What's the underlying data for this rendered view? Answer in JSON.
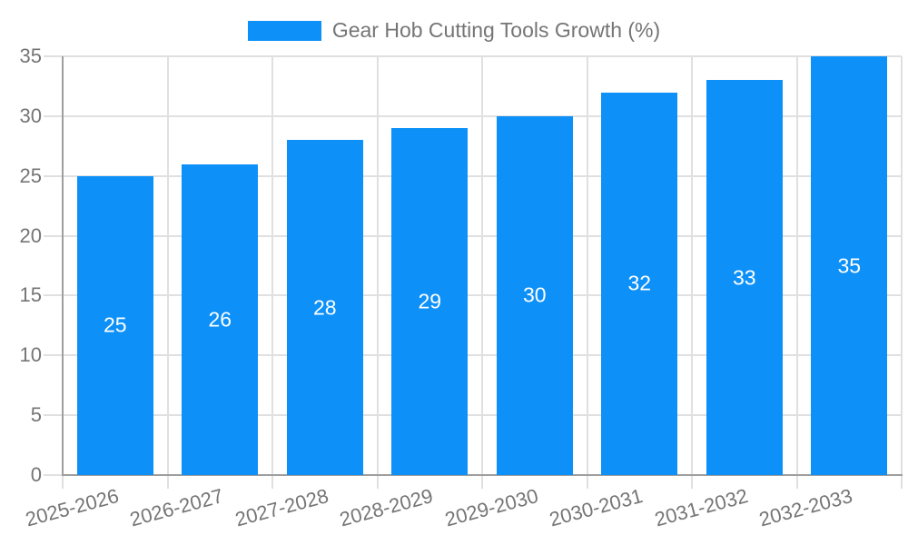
{
  "legend": {
    "label": "Gear Hob Cutting Tools Growth (%)"
  },
  "chart_data": {
    "type": "bar",
    "title": "Gear Hob Cutting Tools Growth (%)",
    "categories": [
      "2025-2026",
      "2026-2027",
      "2027-2028",
      "2028-2029",
      "2029-2030",
      "2030-2031",
      "2031-2032",
      "2032-2033"
    ],
    "values": [
      25,
      26,
      28,
      29,
      30,
      32,
      33,
      35
    ],
    "bar_value_labels": [
      "25",
      "26",
      "28",
      "29",
      "30",
      "32",
      "33",
      "35"
    ],
    "xlabel": "",
    "ylabel": "",
    "ylim": [
      0,
      35
    ],
    "yticks": [
      0,
      5,
      10,
      15,
      20,
      25,
      30,
      35
    ],
    "grid": "on",
    "legend_position": "top-center",
    "colors": {
      "bar": "#0d90f8",
      "bar_label": "#ffffff",
      "axis_text": "#757575",
      "grid_line": "#e0e0e0",
      "axis_line": "#9e9e9e",
      "background": "#ffffff"
    }
  }
}
